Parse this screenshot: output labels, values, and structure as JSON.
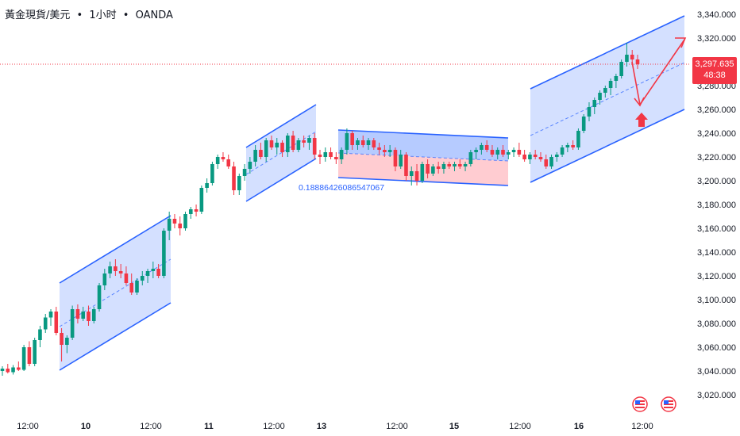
{
  "header": {
    "symbol": "黃金現貨/美元",
    "sep1": "•",
    "interval": "1小时",
    "sep2": "•",
    "source": "OANDA"
  },
  "price_badge": {
    "price": "3,297.635",
    "countdown": "48:38",
    "color": "#f23645"
  },
  "colors": {
    "up": "#089981",
    "down": "#f23645",
    "channel_line": "#2962ff",
    "channel_fill": "#c6d6ff",
    "range_top_fill": "#aec5ff",
    "range_bottom_fill": "#ffc7cc",
    "arrow": "#f23645"
  },
  "annotation": {
    "range_text": "0.18886426086547067"
  },
  "chart_data": {
    "type": "candlestick",
    "title": "",
    "y_ticks": [
      "3,340.000",
      "3,320.000",
      "3,300.000",
      "3,280.000",
      "3,260.000",
      "3,240.000",
      "3,220.000",
      "3,200.000",
      "3,180.000",
      "3,160.000",
      "3,140.000",
      "3,120.000",
      "3,100.000",
      "3,080.000",
      "3,060.000",
      "3,040.000",
      "3,020.000"
    ],
    "ylim": [
      3012,
      3344
    ],
    "x_ticks": [
      {
        "label": "12:00",
        "bold": false
      },
      {
        "label": "10",
        "bold": true
      },
      {
        "label": "12:00",
        "bold": false
      },
      {
        "label": "11",
        "bold": true
      },
      {
        "label": "12:00",
        "bold": false
      },
      {
        "label": "13",
        "bold": true
      },
      {
        "label": "12:00",
        "bold": false
      },
      {
        "label": "15",
        "bold": true
      },
      {
        "label": "12:00",
        "bold": false
      },
      {
        "label": "16",
        "bold": true
      },
      {
        "label": "12:00",
        "bold": false
      }
    ],
    "last_price": 3297.635,
    "candles": [
      [
        3040,
        3044,
        3036,
        3042
      ],
      [
        3042,
        3046,
        3038,
        3039
      ],
      [
        3039,
        3045,
        3037,
        3043
      ],
      [
        3043,
        3048,
        3040,
        3041
      ],
      [
        3041,
        3062,
        3040,
        3060
      ],
      [
        3060,
        3065,
        3044,
        3046
      ],
      [
        3046,
        3068,
        3044,
        3066
      ],
      [
        3066,
        3078,
        3060,
        3075
      ],
      [
        3075,
        3088,
        3072,
        3085
      ],
      [
        3085,
        3092,
        3078,
        3090
      ],
      [
        3090,
        3094,
        3070,
        3072
      ],
      [
        3072,
        3076,
        3048,
        3062
      ],
      [
        3062,
        3070,
        3055,
        3068
      ],
      [
        3068,
        3095,
        3066,
        3092
      ],
      [
        3092,
        3096,
        3080,
        3084
      ],
      [
        3084,
        3094,
        3082,
        3090
      ],
      [
        3090,
        3095,
        3078,
        3082
      ],
      [
        3082,
        3094,
        3080,
        3092
      ],
      [
        3092,
        3114,
        3090,
        3112
      ],
      [
        3112,
        3126,
        3108,
        3122
      ],
      [
        3122,
        3132,
        3118,
        3128
      ],
      [
        3128,
        3134,
        3120,
        3124
      ],
      [
        3124,
        3130,
        3118,
        3122
      ],
      [
        3122,
        3128,
        3112,
        3114
      ],
      [
        3114,
        3122,
        3104,
        3106
      ],
      [
        3106,
        3118,
        3104,
        3116
      ],
      [
        3116,
        3124,
        3112,
        3120
      ],
      [
        3120,
        3126,
        3114,
        3124
      ],
      [
        3124,
        3132,
        3118,
        3126
      ],
      [
        3126,
        3130,
        3118,
        3120
      ],
      [
        3120,
        3160,
        3118,
        3158
      ],
      [
        3158,
        3174,
        3150,
        3168
      ],
      [
        3168,
        3172,
        3160,
        3164
      ],
      [
        3164,
        3170,
        3154,
        3160
      ],
      [
        3160,
        3174,
        3158,
        3172
      ],
      [
        3172,
        3178,
        3168,
        3176
      ],
      [
        3176,
        3180,
        3170,
        3174
      ],
      [
        3174,
        3196,
        3172,
        3194
      ],
      [
        3194,
        3202,
        3190,
        3198
      ],
      [
        3198,
        3216,
        3196,
        3214
      ],
      [
        3214,
        3222,
        3210,
        3220
      ],
      [
        3220,
        3224,
        3216,
        3218
      ],
      [
        3218,
        3222,
        3210,
        3212
      ],
      [
        3212,
        3216,
        3188,
        3192
      ],
      [
        3192,
        3206,
        3188,
        3204
      ],
      [
        3204,
        3214,
        3200,
        3210
      ],
      [
        3210,
        3220,
        3206,
        3216
      ],
      [
        3216,
        3230,
        3212,
        3226
      ],
      [
        3226,
        3232,
        3218,
        3220
      ],
      [
        3220,
        3236,
        3216,
        3234
      ],
      [
        3234,
        3238,
        3226,
        3228
      ],
      [
        3228,
        3236,
        3222,
        3232
      ],
      [
        3232,
        3234,
        3220,
        3224
      ],
      [
        3224,
        3240,
        3220,
        3238
      ],
      [
        3238,
        3242,
        3224,
        3226
      ],
      [
        3226,
        3236,
        3224,
        3234
      ],
      [
        3234,
        3238,
        3228,
        3232
      ],
      [
        3232,
        3238,
        3226,
        3236
      ],
      [
        3236,
        3240,
        3218,
        3222
      ],
      [
        3222,
        3226,
        3214,
        3220
      ],
      [
        3220,
        3228,
        3216,
        3224
      ],
      [
        3224,
        3228,
        3218,
        3220
      ],
      [
        3220,
        3224,
        3214,
        3218
      ],
      [
        3218,
        3228,
        3214,
        3226
      ],
      [
        3226,
        3244,
        3222,
        3240
      ],
      [
        3240,
        3242,
        3226,
        3230
      ],
      [
        3230,
        3236,
        3226,
        3234
      ],
      [
        3234,
        3238,
        3228,
        3230
      ],
      [
        3230,
        3236,
        3226,
        3234
      ],
      [
        3234,
        3236,
        3226,
        3228
      ],
      [
        3228,
        3232,
        3222,
        3226
      ],
      [
        3226,
        3230,
        3220,
        3224
      ],
      [
        3224,
        3230,
        3220,
        3226
      ],
      [
        3226,
        3228,
        3208,
        3212
      ],
      [
        3212,
        3226,
        3210,
        3222
      ],
      [
        3222,
        3224,
        3200,
        3204
      ],
      [
        3204,
        3212,
        3196,
        3208
      ],
      [
        3208,
        3214,
        3196,
        3200
      ],
      [
        3200,
        3216,
        3198,
        3214
      ],
      [
        3214,
        3218,
        3202,
        3206
      ],
      [
        3206,
        3214,
        3204,
        3212
      ],
      [
        3212,
        3216,
        3206,
        3210
      ],
      [
        3210,
        3216,
        3206,
        3214
      ],
      [
        3214,
        3216,
        3210,
        3212
      ],
      [
        3212,
        3216,
        3208,
        3214
      ],
      [
        3214,
        3218,
        3210,
        3212
      ],
      [
        3212,
        3216,
        3208,
        3214
      ],
      [
        3214,
        3226,
        3212,
        3224
      ],
      [
        3224,
        3228,
        3218,
        3226
      ],
      [
        3226,
        3232,
        3222,
        3230
      ],
      [
        3230,
        3234,
        3224,
        3226
      ],
      [
        3226,
        3230,
        3220,
        3222
      ],
      [
        3222,
        3228,
        3218,
        3226
      ],
      [
        3226,
        3230,
        3220,
        3222
      ],
      [
        3222,
        3226,
        3218,
        3224
      ],
      [
        3224,
        3228,
        3220,
        3226
      ],
      [
        3226,
        3232,
        3220,
        3222
      ],
      [
        3222,
        3226,
        3216,
        3218
      ],
      [
        3218,
        3224,
        3214,
        3222
      ],
      [
        3222,
        3226,
        3218,
        3220
      ],
      [
        3220,
        3224,
        3216,
        3218
      ],
      [
        3218,
        3222,
        3210,
        3212
      ],
      [
        3212,
        3222,
        3210,
        3220
      ],
      [
        3220,
        3224,
        3216,
        3222
      ],
      [
        3222,
        3230,
        3220,
        3228
      ],
      [
        3228,
        3232,
        3224,
        3230
      ],
      [
        3230,
        3234,
        3226,
        3228
      ],
      [
        3228,
        3244,
        3226,
        3242
      ],
      [
        3242,
        3256,
        3240,
        3254
      ],
      [
        3254,
        3266,
        3250,
        3262
      ],
      [
        3262,
        3270,
        3256,
        3268
      ],
      [
        3268,
        3276,
        3264,
        3274
      ],
      [
        3274,
        3280,
        3270,
        3278
      ],
      [
        3278,
        3286,
        3272,
        3284
      ],
      [
        3284,
        3290,
        3278,
        3288
      ],
      [
        3288,
        3302,
        3286,
        3300
      ],
      [
        3300,
        3316,
        3296,
        3306
      ],
      [
        3306,
        3310,
        3298,
        3302
      ],
      [
        3302,
        3306,
        3294,
        3298
      ]
    ]
  }
}
